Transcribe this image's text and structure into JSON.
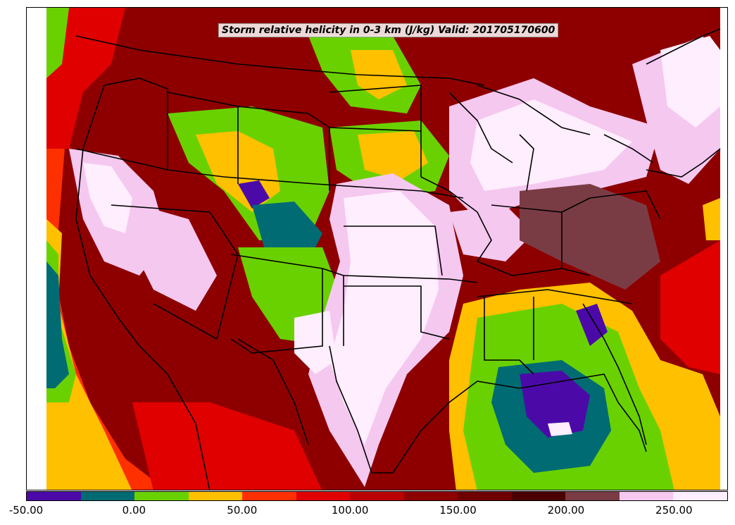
{
  "title": "Storm relative helicity in 0-3 km (J/kg) Valid: 201705170600",
  "colorbar": {
    "min": -50,
    "max": 275,
    "step": 25,
    "colors": [
      "#4b0aa8",
      "#006b73",
      "#6ad100",
      "#ffc000",
      "#ff3000",
      "#e00000",
      "#bb0000",
      "#8e0000",
      "#6e0000",
      "#4a0000",
      "#7a3c44",
      "#f5c8f0",
      "#ffeefd"
    ],
    "tick_labels": [
      "-50.00",
      "0.00",
      "50.00",
      "100.00",
      "150.00",
      "200.00",
      "250.00"
    ],
    "tick_values": [
      -50,
      0,
      50,
      100,
      150,
      200,
      250
    ]
  }
}
